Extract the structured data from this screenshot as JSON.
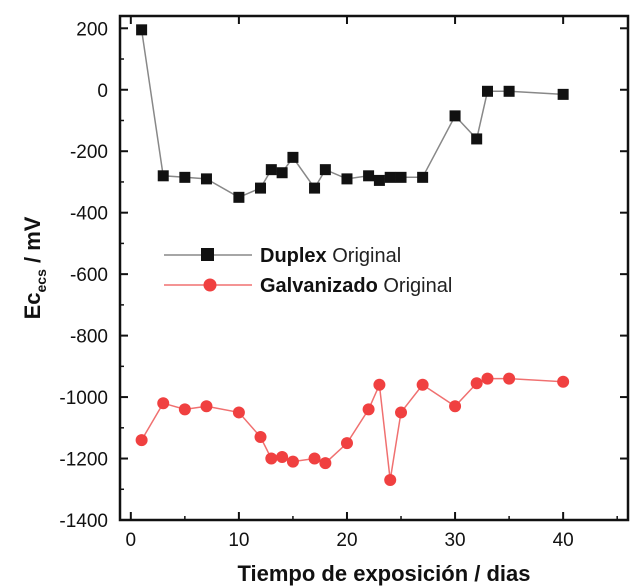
{
  "chart_data": {
    "type": "line",
    "xlabel": "Tiempo de exposición / dias",
    "ylabel_main": "Ec",
    "ylabel_sub": "ecs",
    "ylabel_unit": " / mV",
    "xlim": [
      -1,
      46
    ],
    "ylim": [
      -1400,
      240
    ],
    "xticks": [
      0,
      10,
      20,
      30,
      40
    ],
    "yticks": [
      200,
      0,
      -200,
      -400,
      -600,
      -800,
      -1000,
      -1200,
      -1400
    ],
    "legend_position": "middle-left",
    "series": [
      {
        "name_bold": "Duplex",
        "name_rest": " Original",
        "marker": "square",
        "color": "#111111",
        "line_color": "#888888",
        "points": [
          [
            1,
            195
          ],
          [
            3,
            -280
          ],
          [
            5,
            -285
          ],
          [
            7,
            -290
          ],
          [
            10,
            -350
          ],
          [
            12,
            -320
          ],
          [
            13,
            -260
          ],
          [
            14,
            -270
          ],
          [
            15,
            -220
          ],
          [
            17,
            -320
          ],
          [
            18,
            -260
          ],
          [
            20,
            -290
          ],
          [
            22,
            -280
          ],
          [
            23,
            -295
          ],
          [
            24,
            -285
          ],
          [
            25,
            -285
          ],
          [
            27,
            -285
          ],
          [
            30,
            -85
          ],
          [
            32,
            -160
          ],
          [
            33,
            -5
          ],
          [
            35,
            -5
          ],
          [
            40,
            -15
          ]
        ]
      },
      {
        "name_bold": "Galvanizado",
        "name_rest": " Original",
        "marker": "circle",
        "color": "#f04040",
        "line_color": "#f07070",
        "points": [
          [
            1,
            -1140
          ],
          [
            3,
            -1020
          ],
          [
            5,
            -1040
          ],
          [
            7,
            -1030
          ],
          [
            10,
            -1050
          ],
          [
            12,
            -1130
          ],
          [
            13,
            -1200
          ],
          [
            14,
            -1195
          ],
          [
            15,
            -1210
          ],
          [
            17,
            -1200
          ],
          [
            18,
            -1215
          ],
          [
            20,
            -1150
          ],
          [
            22,
            -1040
          ],
          [
            23,
            -960
          ],
          [
            24,
            -1270
          ],
          [
            25,
            -1050
          ],
          [
            27,
            -960
          ],
          [
            30,
            -1030
          ],
          [
            32,
            -955
          ],
          [
            33,
            -940
          ],
          [
            35,
            -940
          ],
          [
            40,
            -950
          ]
        ]
      }
    ]
  }
}
